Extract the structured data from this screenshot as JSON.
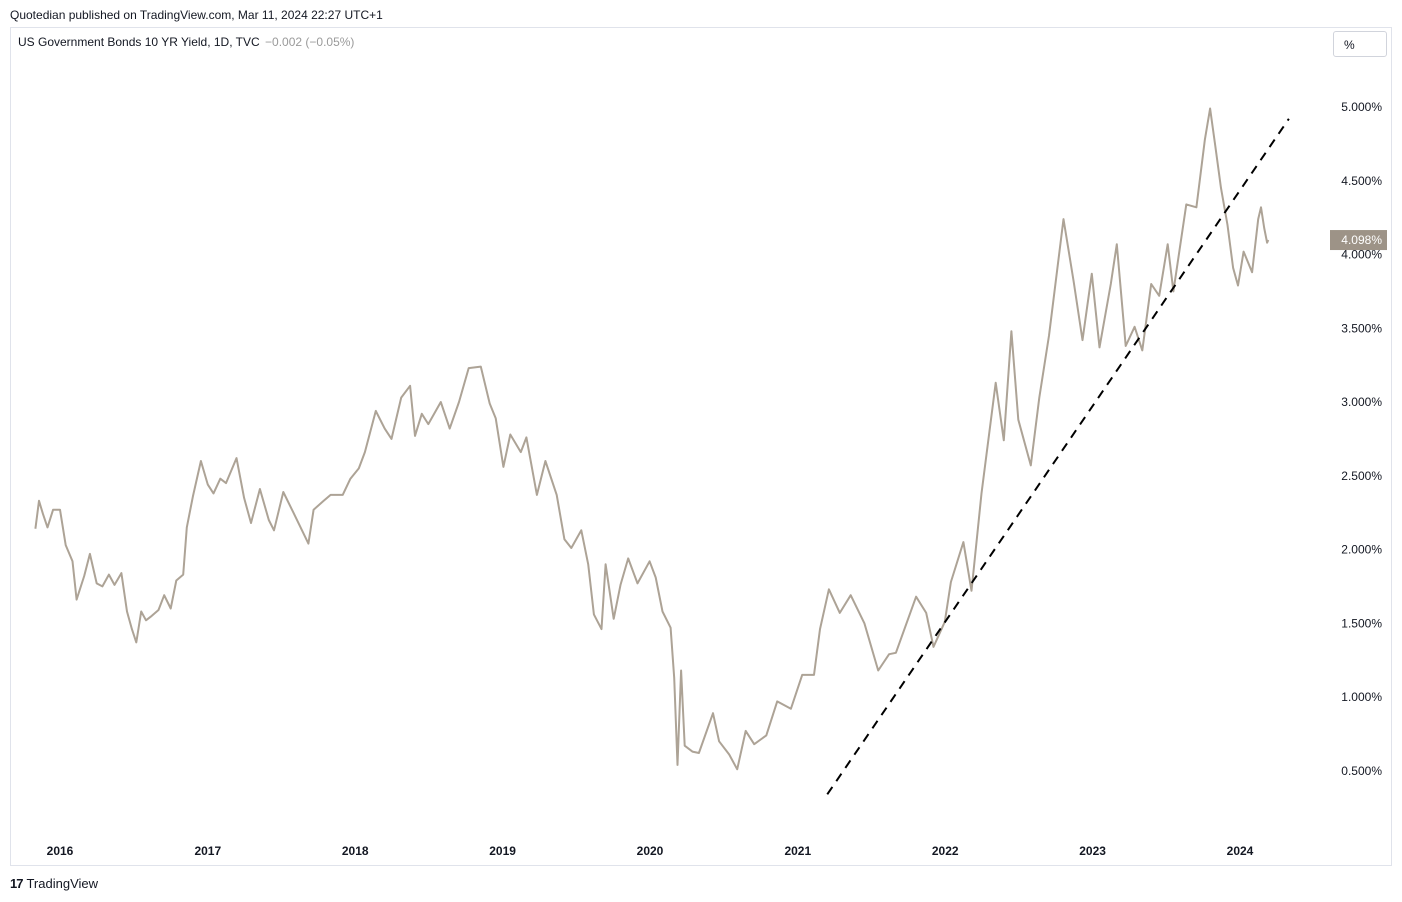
{
  "header": {
    "published": "Quotedian published on TradingView.com, Mar 11, 2024 22:27 UTC+1"
  },
  "legend": {
    "title": "US Government Bonds 10 YR Yield, 1D, TVC",
    "change": "−0.002 (−0.05%)"
  },
  "scale_button": {
    "label": "%"
  },
  "footer": {
    "logo_icon": "tradingview-logo-icon",
    "brand": "TradingView"
  },
  "colors": {
    "line": "#ada396",
    "trendline": "#000000",
    "price_badge": "#9d9387",
    "price_badge_text": "#ffffff"
  },
  "chart_data": {
    "type": "line",
    "title": "US Government Bonds 10 YR Yield, 1D, TVC",
    "xlabel": "",
    "ylabel": "",
    "ylim": [
      0.25,
      5.3
    ],
    "x_tick_labels": [
      "2016",
      "2017",
      "2018",
      "2019",
      "2020",
      "2021",
      "2022",
      "2023",
      "2024"
    ],
    "y_tick_labels": [
      "0.500%",
      "1.000%",
      "1.500%",
      "2.000%",
      "2.500%",
      "3.000%",
      "3.500%",
      "4.000%",
      "4.500%",
      "5.000%"
    ],
    "y_ticks": [
      0.5,
      1.0,
      1.5,
      2.0,
      2.5,
      3.0,
      3.5,
      4.0,
      4.5,
      5.0
    ],
    "last_value_label": "4.098%",
    "last_value": 4.098,
    "grid": false,
    "series": [
      {
        "values": [
          [
            "2015-11-01",
            2.14
          ],
          [
            "2015-11-10",
            2.33
          ],
          [
            "2015-11-20",
            2.24
          ],
          [
            "2015-12-01",
            2.15
          ],
          [
            "2015-12-15",
            2.27
          ],
          [
            "2016-01-01",
            2.27
          ],
          [
            "2016-01-15",
            2.03
          ],
          [
            "2016-02-01",
            1.92
          ],
          [
            "2016-02-11",
            1.66
          ],
          [
            "2016-03-01",
            1.82
          ],
          [
            "2016-03-15",
            1.97
          ],
          [
            "2016-04-01",
            1.77
          ],
          [
            "2016-04-15",
            1.75
          ],
          [
            "2016-05-01",
            1.83
          ],
          [
            "2016-05-15",
            1.76
          ],
          [
            "2016-06-01",
            1.84
          ],
          [
            "2016-06-15",
            1.58
          ],
          [
            "2016-06-27",
            1.46
          ],
          [
            "2016-07-08",
            1.37
          ],
          [
            "2016-07-20",
            1.58
          ],
          [
            "2016-08-01",
            1.52
          ],
          [
            "2016-08-15",
            1.55
          ],
          [
            "2016-09-01",
            1.59
          ],
          [
            "2016-09-15",
            1.69
          ],
          [
            "2016-10-01",
            1.6
          ],
          [
            "2016-10-15",
            1.79
          ],
          [
            "2016-11-01",
            1.83
          ],
          [
            "2016-11-10",
            2.15
          ],
          [
            "2016-11-25",
            2.36
          ],
          [
            "2016-12-15",
            2.6
          ],
          [
            "2017-01-01",
            2.44
          ],
          [
            "2017-01-15",
            2.38
          ],
          [
            "2017-02-01",
            2.48
          ],
          [
            "2017-02-15",
            2.45
          ],
          [
            "2017-03-13",
            2.62
          ],
          [
            "2017-04-01",
            2.35
          ],
          [
            "2017-04-18",
            2.18
          ],
          [
            "2017-05-10",
            2.41
          ],
          [
            "2017-06-01",
            2.2
          ],
          [
            "2017-06-14",
            2.13
          ],
          [
            "2017-07-07",
            2.39
          ],
          [
            "2017-08-01",
            2.25
          ],
          [
            "2017-09-07",
            2.04
          ],
          [
            "2017-09-20",
            2.27
          ],
          [
            "2017-10-15",
            2.33
          ],
          [
            "2017-11-01",
            2.37
          ],
          [
            "2017-11-15",
            2.37
          ],
          [
            "2017-12-01",
            2.37
          ],
          [
            "2017-12-20",
            2.48
          ],
          [
            "2018-01-10",
            2.55
          ],
          [
            "2018-01-25",
            2.66
          ],
          [
            "2018-02-21",
            2.94
          ],
          [
            "2018-03-15",
            2.82
          ],
          [
            "2018-04-01",
            2.75
          ],
          [
            "2018-04-25",
            3.03
          ],
          [
            "2018-05-17",
            3.11
          ],
          [
            "2018-05-29",
            2.77
          ],
          [
            "2018-06-15",
            2.92
          ],
          [
            "2018-07-01",
            2.85
          ],
          [
            "2018-08-01",
            3.0
          ],
          [
            "2018-08-23",
            2.82
          ],
          [
            "2018-09-15",
            3.0
          ],
          [
            "2018-10-09",
            3.23
          ],
          [
            "2018-11-08",
            3.24
          ],
          [
            "2018-11-30",
            2.99
          ],
          [
            "2018-12-15",
            2.89
          ],
          [
            "2019-01-03",
            2.56
          ],
          [
            "2019-01-20",
            2.78
          ],
          [
            "2019-02-15",
            2.66
          ],
          [
            "2019-03-01",
            2.76
          ],
          [
            "2019-03-27",
            2.37
          ],
          [
            "2019-04-17",
            2.6
          ],
          [
            "2019-05-15",
            2.37
          ],
          [
            "2019-06-03",
            2.07
          ],
          [
            "2019-06-20",
            2.01
          ],
          [
            "2019-07-15",
            2.13
          ],
          [
            "2019-08-01",
            1.9
          ],
          [
            "2019-08-15",
            1.56
          ],
          [
            "2019-09-03",
            1.46
          ],
          [
            "2019-09-13",
            1.9
          ],
          [
            "2019-10-03",
            1.53
          ],
          [
            "2019-10-20",
            1.76
          ],
          [
            "2019-11-08",
            1.94
          ],
          [
            "2019-12-01",
            1.77
          ],
          [
            "2019-12-31",
            1.92
          ],
          [
            "2020-01-15",
            1.81
          ],
          [
            "2020-02-01",
            1.58
          ],
          [
            "2020-02-21",
            1.47
          ],
          [
            "2020-03-01",
            1.13
          ],
          [
            "2020-03-09",
            0.54
          ],
          [
            "2020-03-18",
            1.18
          ],
          [
            "2020-03-27",
            0.67
          ],
          [
            "2020-04-15",
            0.63
          ],
          [
            "2020-05-01",
            0.62
          ],
          [
            "2020-06-05",
            0.89
          ],
          [
            "2020-06-20",
            0.7
          ],
          [
            "2020-07-15",
            0.61
          ],
          [
            "2020-08-04",
            0.51
          ],
          [
            "2020-08-25",
            0.77
          ],
          [
            "2020-09-15",
            0.68
          ],
          [
            "2020-10-15",
            0.74
          ],
          [
            "2020-11-11",
            0.97
          ],
          [
            "2020-12-15",
            0.92
          ],
          [
            "2021-01-12",
            1.15
          ],
          [
            "2021-02-10",
            1.15
          ],
          [
            "2021-02-25",
            1.46
          ],
          [
            "2021-03-19",
            1.73
          ],
          [
            "2021-04-15",
            1.57
          ],
          [
            "2021-05-12",
            1.69
          ],
          [
            "2021-06-15",
            1.5
          ],
          [
            "2021-07-19",
            1.18
          ],
          [
            "2021-08-15",
            1.29
          ],
          [
            "2021-09-01",
            1.3
          ],
          [
            "2021-10-21",
            1.68
          ],
          [
            "2021-11-15",
            1.57
          ],
          [
            "2021-12-03",
            1.34
          ],
          [
            "2021-12-31",
            1.51
          ],
          [
            "2022-01-15",
            1.78
          ],
          [
            "2022-02-15",
            2.05
          ],
          [
            "2022-03-07",
            1.72
          ],
          [
            "2022-04-01",
            2.38
          ],
          [
            "2022-05-06",
            3.13
          ],
          [
            "2022-05-26",
            2.74
          ],
          [
            "2022-06-14",
            3.48
          ],
          [
            "2022-07-01",
            2.88
          ],
          [
            "2022-08-01",
            2.57
          ],
          [
            "2022-08-22",
            3.03
          ],
          [
            "2022-09-15",
            3.45
          ],
          [
            "2022-10-21",
            4.24
          ],
          [
            "2022-11-15",
            3.82
          ],
          [
            "2022-12-07",
            3.42
          ],
          [
            "2022-12-30",
            3.87
          ],
          [
            "2023-01-18",
            3.37
          ],
          [
            "2023-02-15",
            3.8
          ],
          [
            "2023-03-02",
            4.07
          ],
          [
            "2023-03-24",
            3.38
          ],
          [
            "2023-04-15",
            3.51
          ],
          [
            "2023-05-04",
            3.35
          ],
          [
            "2023-05-26",
            3.8
          ],
          [
            "2023-06-15",
            3.72
          ],
          [
            "2023-07-06",
            4.07
          ],
          [
            "2023-07-20",
            3.75
          ],
          [
            "2023-08-21",
            4.34
          ],
          [
            "2023-09-15",
            4.32
          ],
          [
            "2023-10-06",
            4.78
          ],
          [
            "2023-10-19",
            4.99
          ],
          [
            "2023-11-01",
            4.73
          ],
          [
            "2023-11-15",
            4.45
          ],
          [
            "2023-12-01",
            4.2
          ],
          [
            "2023-12-15",
            3.91
          ],
          [
            "2023-12-27",
            3.79
          ],
          [
            "2024-01-10",
            4.02
          ],
          [
            "2024-01-31",
            3.88
          ],
          [
            "2024-02-15",
            4.24
          ],
          [
            "2024-02-22",
            4.32
          ],
          [
            "2024-03-01",
            4.18
          ],
          [
            "2024-03-08",
            4.08
          ],
          [
            "2024-03-11",
            4.098
          ]
        ]
      }
    ],
    "trendline": {
      "style": "dashed",
      "from": [
        "2021-03-15",
        0.34
      ],
      "to": [
        "2024-05-01",
        4.92
      ]
    }
  }
}
